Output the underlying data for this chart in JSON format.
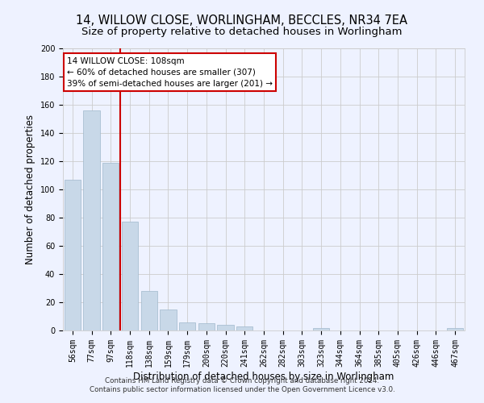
{
  "title": "14, WILLOW CLOSE, WORLINGHAM, BECCLES, NR34 7EA",
  "subtitle": "Size of property relative to detached houses in Worlingham",
  "xlabel": "Distribution of detached houses by size in Worlingham",
  "ylabel": "Number of detached properties",
  "categories": [
    "56sqm",
    "77sqm",
    "97sqm",
    "118sqm",
    "138sqm",
    "159sqm",
    "179sqm",
    "200sqm",
    "220sqm",
    "241sqm",
    "262sqm",
    "282sqm",
    "303sqm",
    "323sqm",
    "344sqm",
    "364sqm",
    "385sqm",
    "405sqm",
    "426sqm",
    "446sqm",
    "467sqm"
  ],
  "values": [
    107,
    156,
    119,
    77,
    28,
    15,
    6,
    5,
    4,
    3,
    0,
    0,
    0,
    2,
    0,
    0,
    0,
    0,
    0,
    0,
    2
  ],
  "bar_color": "#c8d8e8",
  "bar_edge_color": "#a0b8cc",
  "red_line_x": 2.5,
  "annotation_text": "14 WILLOW CLOSE: 108sqm\n← 60% of detached houses are smaller (307)\n39% of semi-detached houses are larger (201) →",
  "annotation_box_color": "#ffffff",
  "annotation_box_edge": "#cc0000",
  "red_line_color": "#cc0000",
  "ylim": [
    0,
    200
  ],
  "yticks": [
    0,
    20,
    40,
    60,
    80,
    100,
    120,
    140,
    160,
    180,
    200
  ],
  "grid_color": "#cccccc",
  "footer1": "Contains HM Land Registry data © Crown copyright and database right 2024.",
  "footer2": "Contains public sector information licensed under the Open Government Licence v3.0.",
  "title_fontsize": 10.5,
  "subtitle_fontsize": 9.5,
  "tick_fontsize": 7,
  "ylabel_fontsize": 8.5,
  "xlabel_fontsize": 8.5,
  "background_color": "#eef2ff"
}
